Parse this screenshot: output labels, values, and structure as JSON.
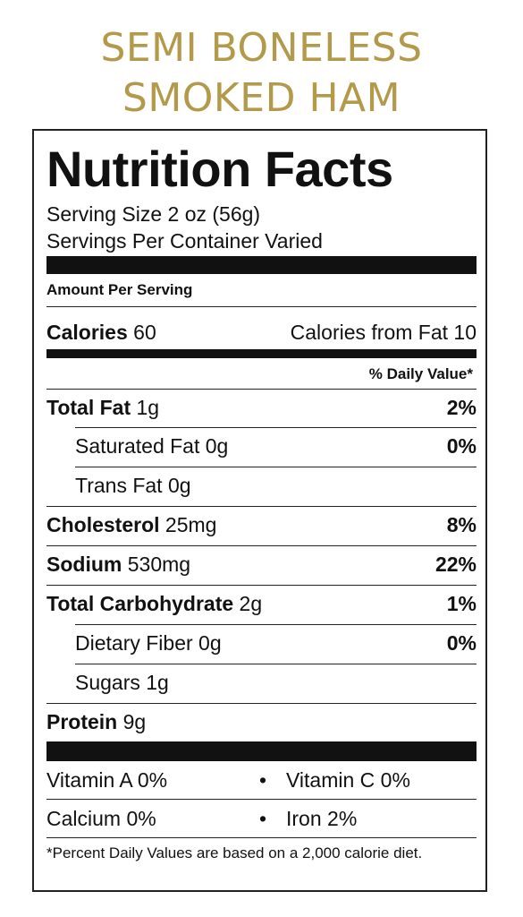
{
  "product": {
    "line1": "SEMI BONELESS",
    "line2": "SMOKED HAM"
  },
  "label": {
    "heading": "Nutrition Facts",
    "serving_size": "Serving Size 2 oz (56g)",
    "servings_per_container": "Servings Per Container Varied",
    "amount_per_serving": "Amount Per Serving",
    "calories_label": "Calories",
    "calories_value": "60",
    "calories_from_fat": "Calories from Fat 10",
    "daily_value_header": "% Daily Value*",
    "nutrients": [
      {
        "name": "Total Fat",
        "amount": "1g",
        "dv": "2%"
      },
      {
        "name": "Saturated Fat",
        "amount": "0g",
        "dv": "0%"
      },
      {
        "name": "Trans Fat",
        "amount": "0g",
        "dv": ""
      },
      {
        "name": "Cholesterol",
        "amount": "25mg",
        "dv": "8%"
      },
      {
        "name": "Sodium",
        "amount": "530mg",
        "dv": "22%"
      },
      {
        "name": "Total Carbohydrate",
        "amount": "2g",
        "dv": "1%"
      },
      {
        "name": "Dietary Fiber",
        "amount": "0g",
        "dv": "0%"
      },
      {
        "name": "Sugars",
        "amount": "1g",
        "dv": ""
      },
      {
        "name": "Protein",
        "amount": "9g",
        "dv": ""
      }
    ],
    "vitamins": [
      {
        "left": "Vitamin A 0%",
        "right": "Vitamin C 0%"
      },
      {
        "left": "Calcium 0%",
        "right": "Iron 2%"
      }
    ],
    "bullet": "•",
    "footnote": "*Percent Daily Values are based on a 2,000 calorie diet."
  }
}
